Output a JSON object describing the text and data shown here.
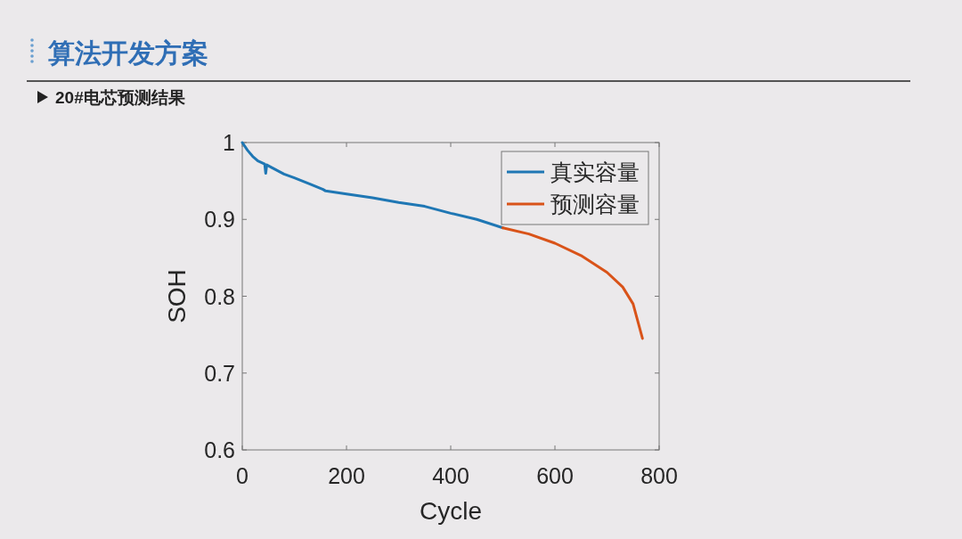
{
  "chart_data": {
    "type": "line",
    "title": "算法开发方案",
    "subtitle": "20#电芯预测结果",
    "xlabel": "Cycle",
    "ylabel": "SOH",
    "xlim": [
      0,
      800
    ],
    "ylim": [
      0.6,
      1
    ],
    "xticks": [
      0,
      200,
      400,
      600,
      800
    ],
    "yticks": [
      0.6,
      0.7,
      0.8,
      0.9,
      1
    ],
    "legend": "top right",
    "grid": false,
    "series": [
      {
        "name": "真实容量",
        "color": "#1f77b4",
        "x": [
          0,
          10,
          20,
          30,
          43,
          45,
          47,
          55,
          80,
          100,
          130,
          155,
          160,
          200,
          250,
          300,
          350,
          400,
          450,
          500
        ],
        "values": [
          1.0,
          0.99,
          0.982,
          0.976,
          0.972,
          0.96,
          0.971,
          0.968,
          0.959,
          0.954,
          0.946,
          0.939,
          0.937,
          0.933,
          0.928,
          0.922,
          0.917,
          0.908,
          0.9,
          0.889
        ]
      },
      {
        "name": "预测容量",
        "color": "#d95319",
        "x": [
          500,
          550,
          600,
          650,
          700,
          730,
          750,
          768
        ],
        "values": [
          0.889,
          0.881,
          0.869,
          0.853,
          0.831,
          0.812,
          0.79,
          0.745
        ]
      }
    ]
  }
}
